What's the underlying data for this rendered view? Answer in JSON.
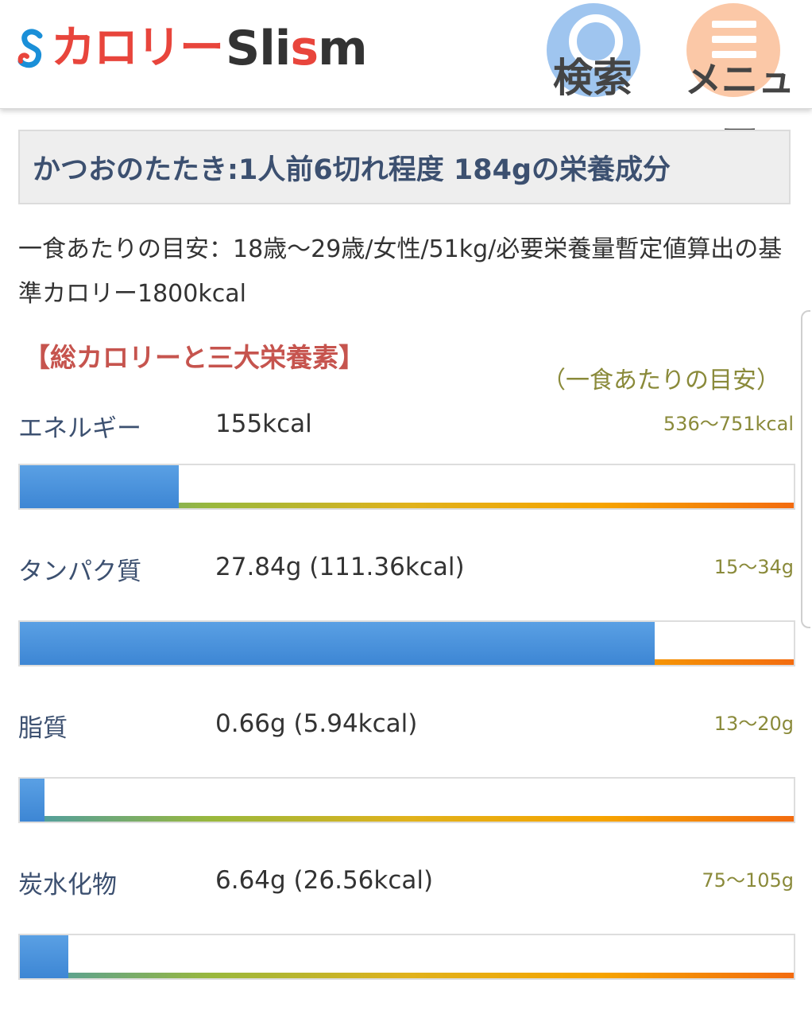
{
  "header": {
    "logo_jp": "カロリー",
    "logo_en_a": "Sli",
    "logo_en_b": "s",
    "logo_en_c": "m",
    "search_label": "検索",
    "menu_label": "メニュー"
  },
  "page": {
    "title": "かつおのたたき:1人前6切れ程度 184gの栄養成分",
    "guide": "一食あたりの目安：18歳〜29歳/女性/51kg/必要栄養量暫定値算出の基準カロリー1800kcal"
  },
  "section": {
    "title": "【総カロリーと三大栄養素】",
    "per_meal": "（一食あたりの目安）"
  },
  "nutrients": [
    {
      "name": "エネルギー",
      "value": "155kcal",
      "range": "536〜751kcal",
      "fill_pct": 20.5
    },
    {
      "name": "タンパク質",
      "value": "27.84g (111.36kcal)",
      "range": "15〜34g",
      "fill_pct": 82
    },
    {
      "name": "脂質",
      "value": "0.66g (5.94kcal)",
      "range": "13〜20g",
      "fill_pct": 3.2
    },
    {
      "name": "炭水化物",
      "value": "6.64g (26.56kcal)",
      "range": "75〜105g",
      "fill_pct": 6.3
    }
  ],
  "colors": {
    "accent_blue": "#3d86d4",
    "title_red": "#c6544e",
    "range_olive": "#8a8a3a"
  }
}
